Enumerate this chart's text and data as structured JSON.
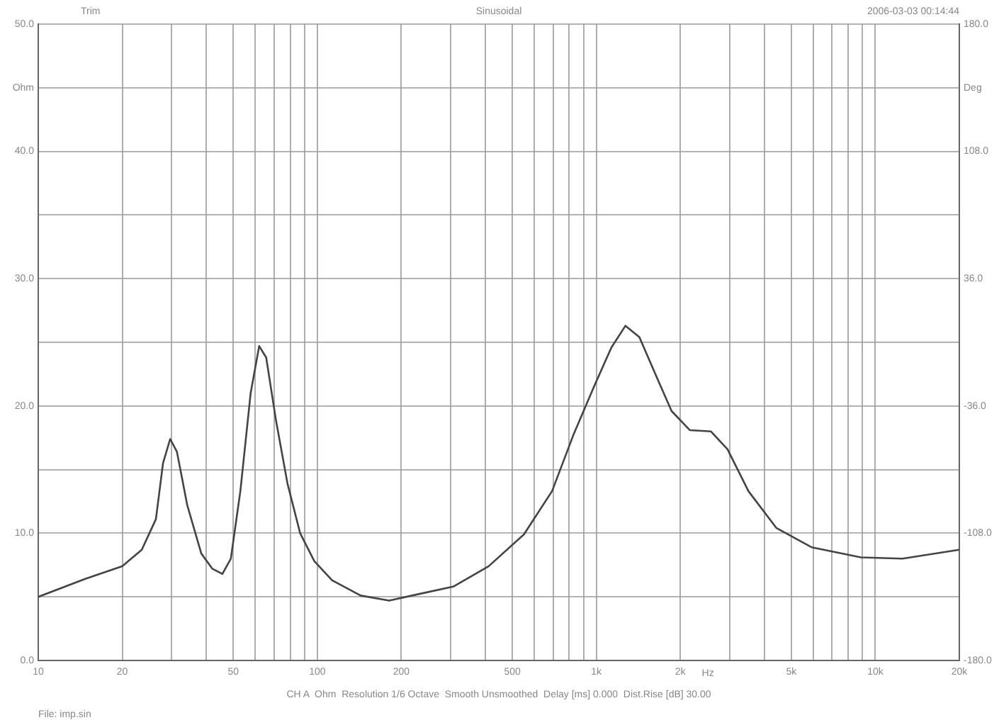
{
  "chart_data": {
    "type": "line",
    "title": "Sinusoidal",
    "xlabel": "Hz",
    "ylabel": "Ohm",
    "y2label": "Deg",
    "annotations": [
      "Trim",
      "2006-03-03 00:14:44",
      "CH A  Ohm  Resolution 1/6 Octave  Smooth Unsmoothed  Delay [ms] 0.000  Dist.Rise [dB] 30.00",
      "File: imp.sin"
    ],
    "x": [
      10,
      14.7,
      20,
      23.5,
      26.4,
      28,
      29.7,
      31.4,
      34.2,
      38.4,
      42.1,
      45.7,
      49,
      53,
      57.7,
      61.9,
      65.6,
      71.2,
      78.2,
      86.8,
      97.6,
      113,
      143,
      181,
      229,
      307,
      411,
      550,
      694,
      827,
      985,
      1133,
      1272,
      1427,
      1658,
      1861,
      2162,
      2573,
      2952,
      3510,
      4424,
      5906,
      8873,
      12530,
      20000
    ],
    "series": [
      {
        "color": "#444444",
        "values": [
          5.0,
          6.4,
          7.4,
          8.7,
          11.1,
          15.5,
          17.4,
          16.4,
          12.2,
          8.4,
          7.2,
          6.8,
          8.0,
          13.3,
          21.0,
          24.7,
          23.8,
          18.8,
          13.9,
          10.0,
          7.8,
          6.3,
          5.1,
          4.7,
          5.2,
          5.8,
          7.4,
          9.9,
          13.3,
          17.7,
          21.6,
          24.6,
          26.3,
          25.4,
          22.1,
          19.6,
          18.1,
          18.0,
          16.6,
          13.3,
          10.4,
          8.9,
          8.1,
          8.0,
          8.7
        ]
      }
    ],
    "log": "x",
    "xlim": [
      10,
      20000
    ],
    "xticks": [
      10,
      20,
      {
        "value": 30,
        "label": null
      },
      {
        "value": 40,
        "label": null
      },
      50,
      {
        "value": 60,
        "label": null
      },
      {
        "value": 70,
        "label": null
      },
      {
        "value": 80,
        "label": null
      },
      {
        "value": 90,
        "label": null
      },
      100,
      200,
      {
        "value": 300,
        "label": null
      },
      {
        "value": 400,
        "label": null
      },
      500,
      {
        "value": 600,
        "label": null
      },
      {
        "value": 700,
        "label": null
      },
      {
        "value": 800,
        "label": null
      },
      {
        "value": 900,
        "label": null
      },
      {
        "value": 1000,
        "label": "1k"
      },
      {
        "value": 2000,
        "label": "2k"
      },
      {
        "value": 3000,
        "label": null
      },
      {
        "value": 4000,
        "label": null
      },
      {
        "value": 5000,
        "label": "5k"
      },
      {
        "value": 6000,
        "label": null
      },
      {
        "value": 7000,
        "label": null
      },
      {
        "value": 8000,
        "label": null
      },
      {
        "value": 9000,
        "label": null
      },
      {
        "value": 10000,
        "label": "10k"
      },
      {
        "value": 20000,
        "label": "20k"
      }
    ],
    "ylim": [
      0,
      50
    ],
    "yticks": [
      {
        "value": 0,
        "label": "0.0"
      },
      {
        "value": 5,
        "label": null
      },
      {
        "value": 10,
        "label": "10.0"
      },
      {
        "value": 15,
        "label": null
      },
      {
        "value": 20,
        "label": "20.0"
      },
      {
        "value": 25,
        "label": null
      },
      {
        "value": 30,
        "label": "30.0"
      },
      {
        "value": 35,
        "label": null
      },
      {
        "value": 40,
        "label": "40.0"
      },
      {
        "value": 45,
        "label": null
      },
      {
        "value": 50,
        "label": "50.0"
      }
    ],
    "y2lim": [
      -180,
      180
    ],
    "y2ticks": [
      {
        "value": -180,
        "label": "-180.0"
      },
      {
        "value": -108,
        "label": "-108.0"
      },
      {
        "value": -36,
        "label": "-36.0"
      },
      {
        "value": 36,
        "label": "36.0"
      },
      {
        "value": 108,
        "label": "108.0"
      },
      {
        "value": 180,
        "label": "180.0"
      }
    ],
    "grid": true,
    "legend": false,
    "marker": "none",
    "line_style": "solid"
  }
}
